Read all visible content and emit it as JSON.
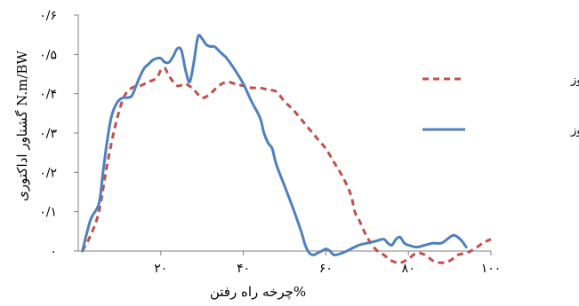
{
  "chart_data": {
    "type": "line",
    "xlabel": "%چرخه راه رفتن",
    "ylabel": "گشتاور اداکتوری N.m/BW",
    "xlim": [
      0,
      100
    ],
    "ylim": [
      0,
      0.6
    ],
    "x_ticks": [
      {
        "value": 20,
        "label": "۲۰"
      },
      {
        "value": 40,
        "label": "۴۰"
      },
      {
        "value": 60,
        "label": "۶۰"
      },
      {
        "value": 80,
        "label": "۸۰"
      },
      {
        "value": 100,
        "label": "۱۰۰"
      }
    ],
    "y_ticks": [
      {
        "value": 0,
        "label": "۰"
      },
      {
        "value": 0.1,
        "label": "۰/۱"
      },
      {
        "value": 0.2,
        "label": "۰/۲"
      },
      {
        "value": 0.3,
        "label": "۰/۳"
      },
      {
        "value": 0.4,
        "label": "۰/۴"
      },
      {
        "value": 0.5,
        "label": "۰/۵"
      },
      {
        "value": 0.6,
        "label": "۰/۶"
      }
    ],
    "grid": false,
    "legend_position": "right",
    "series": [
      {
        "name": "راه رفتن با ارتوز",
        "color": "#c0504d",
        "style": "dashed",
        "points": [
          [
            1,
            0
          ],
          [
            3,
            0.04
          ],
          [
            5,
            0.1
          ],
          [
            7,
            0.22
          ],
          [
            9,
            0.32
          ],
          [
            11,
            0.39
          ],
          [
            13,
            0.415
          ],
          [
            15,
            0.42
          ],
          [
            17,
            0.43
          ],
          [
            19,
            0.44
          ],
          [
            20,
            0.46
          ],
          [
            21,
            0.465
          ],
          [
            22,
            0.445
          ],
          [
            24,
            0.42
          ],
          [
            26,
            0.425
          ],
          [
            28,
            0.41
          ],
          [
            30,
            0.39
          ],
          [
            32,
            0.4
          ],
          [
            34,
            0.42
          ],
          [
            36,
            0.43
          ],
          [
            38,
            0.425
          ],
          [
            40,
            0.42
          ],
          [
            42,
            0.415
          ],
          [
            44,
            0.415
          ],
          [
            46,
            0.41
          ],
          [
            48,
            0.405
          ],
          [
            50,
            0.38
          ],
          [
            52,
            0.36
          ],
          [
            54,
            0.335
          ],
          [
            56,
            0.31
          ],
          [
            58,
            0.285
          ],
          [
            60,
            0.26
          ],
          [
            62,
            0.225
          ],
          [
            64,
            0.19
          ],
          [
            66,
            0.145
          ],
          [
            67,
            0.1
          ],
          [
            68,
            0.08
          ],
          [
            70,
            0.035
          ],
          [
            72,
            0.005
          ],
          [
            74,
            -0.01
          ],
          [
            76,
            -0.025
          ],
          [
            78,
            -0.03
          ],
          [
            80,
            -0.02
          ],
          [
            82,
            -0.005
          ],
          [
            84,
            -0.01
          ],
          [
            86,
            -0.025
          ],
          [
            88,
            -0.03
          ],
          [
            90,
            -0.025
          ],
          [
            92,
            -0.01
          ],
          [
            94,
            -0.005
          ],
          [
            96,
            0.005
          ],
          [
            98,
            0.02
          ],
          [
            100,
            0.03
          ]
        ]
      },
      {
        "name": "راه رفتن بدون ارتوز",
        "color": "#4f81bd",
        "style": "solid",
        "points": [
          [
            1,
            0
          ],
          [
            3,
            0.08
          ],
          [
            5,
            0.12
          ],
          [
            6,
            0.2
          ],
          [
            7,
            0.28
          ],
          [
            8,
            0.34
          ],
          [
            9,
            0.37
          ],
          [
            10,
            0.385
          ],
          [
            11,
            0.39
          ],
          [
            12,
            0.39
          ],
          [
            13,
            0.395
          ],
          [
            14,
            0.42
          ],
          [
            15,
            0.445
          ],
          [
            16,
            0.465
          ],
          [
            17,
            0.475
          ],
          [
            18,
            0.485
          ],
          [
            19,
            0.49
          ],
          [
            20,
            0.49
          ],
          [
            21,
            0.48
          ],
          [
            22,
            0.48
          ],
          [
            23,
            0.495
          ],
          [
            24,
            0.515
          ],
          [
            25,
            0.51
          ],
          [
            26,
            0.46
          ],
          [
            27,
            0.43
          ],
          [
            28,
            0.48
          ],
          [
            29,
            0.545
          ],
          [
            30,
            0.54
          ],
          [
            31,
            0.525
          ],
          [
            32,
            0.52
          ],
          [
            33,
            0.52
          ],
          [
            34,
            0.51
          ],
          [
            35,
            0.5
          ],
          [
            36,
            0.49
          ],
          [
            38,
            0.46
          ],
          [
            40,
            0.425
          ],
          [
            42,
            0.38
          ],
          [
            44,
            0.34
          ],
          [
            45,
            0.3
          ],
          [
            46,
            0.275
          ],
          [
            47,
            0.26
          ],
          [
            48,
            0.22
          ],
          [
            50,
            0.165
          ],
          [
            52,
            0.11
          ],
          [
            54,
            0.05
          ],
          [
            55,
            0.015
          ],
          [
            56,
            -0.005
          ],
          [
            57,
            -0.01
          ],
          [
            58,
            -0.005
          ],
          [
            59,
            0.0
          ],
          [
            60,
            0.005
          ],
          [
            61,
            0.0
          ],
          [
            62,
            -0.01
          ],
          [
            64,
            -0.005
          ],
          [
            66,
            0.005
          ],
          [
            68,
            0.015
          ],
          [
            70,
            0.02
          ],
          [
            72,
            0.025
          ],
          [
            74,
            0.03
          ],
          [
            75,
            0.02
          ],
          [
            76,
            0.015
          ],
          [
            77,
            0.03
          ],
          [
            78,
            0.035
          ],
          [
            79,
            0.02
          ],
          [
            80,
            0.015
          ],
          [
            82,
            0.01
          ],
          [
            84,
            0.015
          ],
          [
            86,
            0.02
          ],
          [
            88,
            0.02
          ],
          [
            90,
            0.035
          ],
          [
            91,
            0.04
          ],
          [
            92,
            0.035
          ],
          [
            93,
            0.025
          ],
          [
            94,
            0.01
          ]
        ]
      }
    ]
  }
}
